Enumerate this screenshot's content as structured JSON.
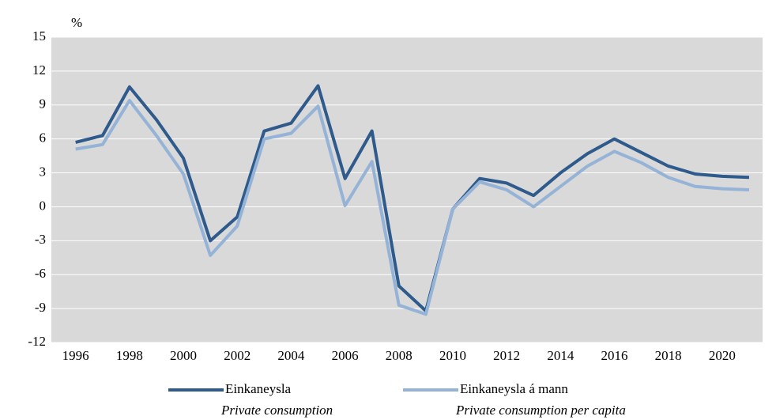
{
  "chart_data": {
    "type": "line",
    "y_unit": "%",
    "x": [
      1996,
      1997,
      1998,
      1999,
      2000,
      2001,
      2002,
      2003,
      2004,
      2005,
      2006,
      2007,
      2008,
      2009,
      2010,
      2011,
      2012,
      2013,
      2014,
      2015,
      2016,
      2017,
      2018,
      2019,
      2020,
      2021
    ],
    "series": [
      {
        "name": "Einkaneysla",
        "name_en": "Private consumption",
        "color": "#2e5a8c",
        "values": [
          5.7,
          6.3,
          10.6,
          7.7,
          4.3,
          -3.0,
          -0.9,
          6.7,
          7.4,
          10.7,
          2.5,
          6.7,
          -7.0,
          -9.2,
          -0.2,
          2.5,
          2.1,
          1.0,
          3.0,
          4.7,
          6.0,
          4.8,
          3.6,
          2.9,
          2.7,
          2.6
        ]
      },
      {
        "name": "Einkaneysla á mann",
        "name_en": "Private consumption per capita",
        "color": "#95b3d7",
        "values": [
          5.1,
          5.5,
          9.4,
          6.3,
          2.9,
          -4.3,
          -1.7,
          6.0,
          6.5,
          8.9,
          0.1,
          4.0,
          -8.7,
          -9.5,
          -0.2,
          2.2,
          1.5,
          0.0,
          1.8,
          3.6,
          4.9,
          3.9,
          2.6,
          1.8,
          1.6,
          1.5
        ]
      }
    ],
    "xlim": [
      1995.1,
      2021.5
    ],
    "xticks": [
      1996,
      1998,
      2000,
      2002,
      2004,
      2006,
      2008,
      2010,
      2012,
      2014,
      2016,
      2018,
      2020
    ],
    "ylim": [
      -12,
      15
    ],
    "yticks": [
      -12,
      -9,
      -6,
      -3,
      0,
      3,
      6,
      9,
      12,
      15
    ],
    "grid": true
  }
}
